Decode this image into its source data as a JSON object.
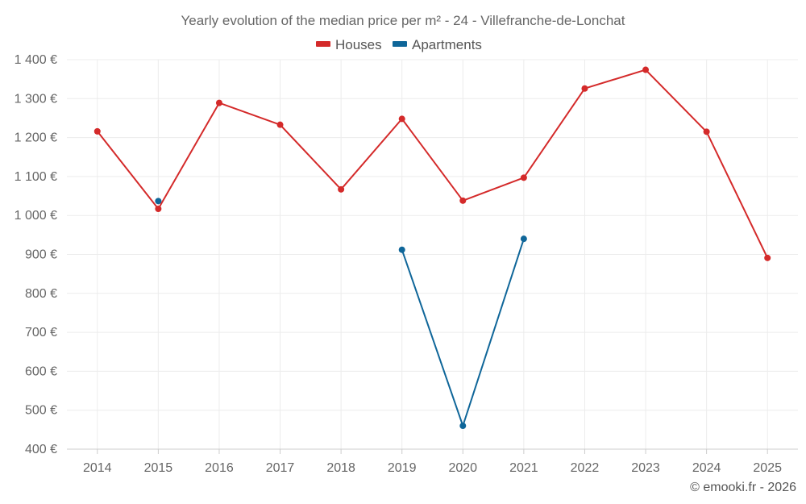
{
  "chart_data": {
    "type": "line",
    "title": "Yearly evolution of the median price per m² - 24 - Villefranche-de-Lonchat",
    "x": [
      "2014",
      "2015",
      "2016",
      "2017",
      "2018",
      "2019",
      "2020",
      "2021",
      "2022",
      "2023",
      "2024",
      "2025"
    ],
    "ylim": [
      400,
      1400
    ],
    "yticks": [
      400,
      500,
      600,
      700,
      800,
      900,
      1000,
      1100,
      1200,
      1300,
      1400
    ],
    "ytick_labels": [
      "400 €",
      "500 €",
      "600 €",
      "700 €",
      "800 €",
      "900 €",
      "1 000 €",
      "1 100 €",
      "1 200 €",
      "1 300 €",
      "1 400 €"
    ],
    "grid": true,
    "legend_position": "top-center",
    "series": [
      {
        "name": "Houses",
        "color": "#d42a2a",
        "values": [
          1216,
          1017,
          1289,
          1233,
          1067,
          1248,
          1038,
          1097,
          1326,
          1374,
          1215,
          891
        ]
      },
      {
        "name": "Apartments",
        "color": "#0f6699",
        "values": [
          null,
          1037,
          null,
          null,
          null,
          912,
          460,
          940,
          null,
          null,
          null,
          null
        ]
      }
    ]
  },
  "credit": "© emooki.fr - 2026"
}
